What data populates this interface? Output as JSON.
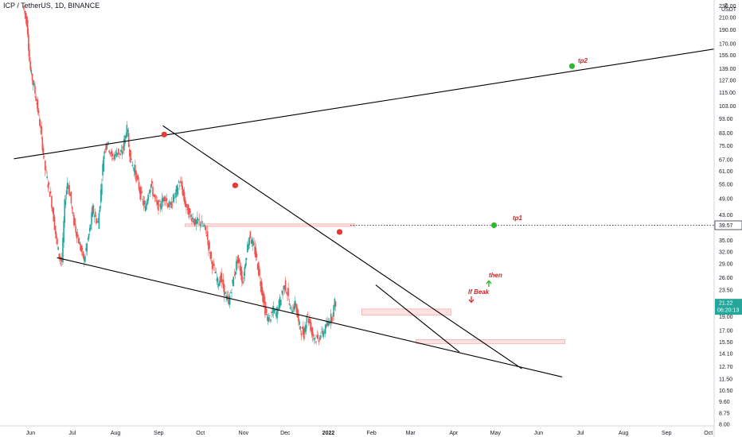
{
  "header": {
    "title": "ICP / TetherUS, 1D, BINANCE"
  },
  "axis": {
    "currency_label": "USDT"
  },
  "price_badges": {
    "level": "39.57",
    "current_price": "21.22",
    "countdown": "06:20:13"
  },
  "annotations": {
    "tp2": "tp2",
    "tp1": "tp1",
    "then": "then",
    "if_break": "If Beak"
  },
  "colors": {
    "up": "#26a69a",
    "down": "#ef5350",
    "line": "#000000",
    "pivot": "#e53935",
    "target": "#2eb82e",
    "zone_fill": "#fde0e0",
    "zone_stroke": "#f2a6a6",
    "badge_last": "#26a69a"
  },
  "chart_data": {
    "type": "candlestick",
    "title": "ICP / TetherUS, 1D, BINANCE",
    "y_scale": "log",
    "ylim": [
      8.0,
      237
    ],
    "x_ticks": [
      "Jun",
      "Jul",
      "Aug",
      "Sep",
      "Oct",
      "Nov",
      "Dec",
      "2022",
      "Feb",
      "Mar",
      "Apr",
      "May",
      "Jun",
      "Jul",
      "Aug",
      "Sep",
      "Oct"
    ],
    "y_ticks": [
      8.0,
      8.75,
      9.6,
      10.5,
      11.5,
      12.7,
      14.1,
      15.5,
      17.0,
      19.0,
      21.0,
      23.5,
      26.0,
      29.0,
      32.0,
      35.0,
      39.0,
      43.0,
      49.0,
      55.0,
      61.0,
      67.0,
      75.0,
      83.0,
      93.0,
      103.0,
      115.0,
      127.0,
      139.0,
      155.0,
      170.0,
      190.0,
      210.0,
      230
    ],
    "price_path": [
      [
        0,
        230
      ],
      [
        3,
        200
      ],
      [
        5,
        140
      ],
      [
        8,
        120
      ],
      [
        10,
        105
      ],
      [
        12,
        90
      ],
      [
        14,
        75
      ],
      [
        16,
        62
      ],
      [
        18,
        55
      ],
      [
        20,
        50
      ],
      [
        22,
        42
      ],
      [
        24,
        35
      ],
      [
        26,
        31
      ],
      [
        28,
        29.5
      ],
      [
        30,
        47
      ],
      [
        32,
        56
      ],
      [
        34,
        50
      ],
      [
        36,
        42
      ],
      [
        38,
        38
      ],
      [
        40,
        35
      ],
      [
        42,
        32
      ],
      [
        44,
        30
      ],
      [
        46,
        34
      ],
      [
        48,
        38
      ],
      [
        50,
        45
      ],
      [
        52,
        42
      ],
      [
        54,
        40
      ],
      [
        56,
        52
      ],
      [
        58,
        70
      ],
      [
        60,
        78
      ],
      [
        62,
        73
      ],
      [
        64,
        68
      ],
      [
        66,
        70
      ],
      [
        68,
        72
      ],
      [
        70,
        69
      ],
      [
        72,
        74
      ],
      [
        74,
        84
      ],
      [
        75,
        86
      ],
      [
        76,
        75
      ],
      [
        78,
        65
      ],
      [
        80,
        62
      ],
      [
        82,
        57
      ],
      [
        84,
        52
      ],
      [
        86,
        48
      ],
      [
        88,
        45
      ],
      [
        90,
        52
      ],
      [
        92,
        55
      ],
      [
        94,
        50
      ],
      [
        96,
        47
      ],
      [
        98,
        46
      ],
      [
        100,
        48
      ],
      [
        102,
        50
      ],
      [
        104,
        47
      ],
      [
        106,
        46
      ],
      [
        108,
        49
      ],
      [
        110,
        51
      ],
      [
        112,
        56
      ],
      [
        114,
        54
      ],
      [
        116,
        48
      ],
      [
        118,
        45
      ],
      [
        120,
        43
      ],
      [
        122,
        42
      ],
      [
        124,
        40
      ],
      [
        126,
        41
      ],
      [
        128,
        40
      ],
      [
        130,
        39
      ],
      [
        132,
        37
      ],
      [
        134,
        32
      ],
      [
        136,
        29
      ],
      [
        138,
        27
      ],
      [
        140,
        25
      ],
      [
        142,
        26
      ],
      [
        144,
        24
      ],
      [
        146,
        22
      ],
      [
        148,
        21.5
      ],
      [
        150,
        24
      ],
      [
        152,
        27
      ],
      [
        154,
        30
      ],
      [
        156,
        28
      ],
      [
        158,
        25
      ],
      [
        160,
        30
      ],
      [
        162,
        35
      ],
      [
        163,
        37
      ],
      [
        164,
        35
      ],
      [
        166,
        33
      ],
      [
        168,
        30
      ],
      [
        170,
        26
      ],
      [
        172,
        23
      ],
      [
        174,
        20
      ],
      [
        176,
        18.5
      ],
      [
        178,
        19
      ],
      [
        180,
        20
      ],
      [
        182,
        19.5
      ],
      [
        184,
        21
      ],
      [
        186,
        23
      ],
      [
        188,
        24.5
      ],
      [
        190,
        23
      ],
      [
        192,
        20
      ],
      [
        194,
        20.5
      ],
      [
        196,
        21
      ],
      [
        198,
        18
      ],
      [
        200,
        17
      ],
      [
        202,
        16.5
      ],
      [
        204,
        19.5
      ],
      [
        206,
        18
      ],
      [
        208,
        16.5
      ],
      [
        210,
        16
      ],
      [
        212,
        15.7
      ],
      [
        214,
        16.5
      ],
      [
        216,
        16.8
      ],
      [
        218,
        17.5
      ],
      [
        220,
        18.5
      ],
      [
        222,
        19
      ],
      [
        224,
        21.22
      ]
    ],
    "trendlines": [
      {
        "from": [
          "2021-05-20",
          67.5
        ],
        "to": [
          "2022-11-05",
          172
        ]
      },
      {
        "from": [
          "2021-09-04",
          88
        ],
        "to": [
          "2022-05-20",
          12.5
        ]
      },
      {
        "from": [
          "2021-06-20",
          30.5
        ],
        "to": [
          "2022-06-18",
          11.7
        ]
      },
      {
        "from": [
          "2022-02-04",
          24.5
        ],
        "to": [
          "2022-04-05",
          14.3
        ]
      }
    ],
    "pivots": [
      [
        "2021-09-05",
        82
      ],
      [
        "2021-10-26",
        54.5
      ],
      [
        "2022-01-09",
        37.5
      ]
    ],
    "targets": [
      {
        "label": "tp2",
        "date": "2022-06-25",
        "value": 142
      },
      {
        "label": "tp1",
        "date": "2022-04-30",
        "value": 39.57
      }
    ],
    "horizontal_level": 39.57,
    "zones": [
      {
        "from": "2021-09-20",
        "to": "2022-01-20",
        "low": 39.2,
        "high": 40.0
      },
      {
        "from": "2022-01-25",
        "to": "2022-03-30",
        "low": 19.2,
        "high": 20.2
      },
      {
        "from": "2022-03-05",
        "to": "2022-06-20",
        "low": 15.3,
        "high": 15.8
      }
    ],
    "last_price": 21.22
  }
}
